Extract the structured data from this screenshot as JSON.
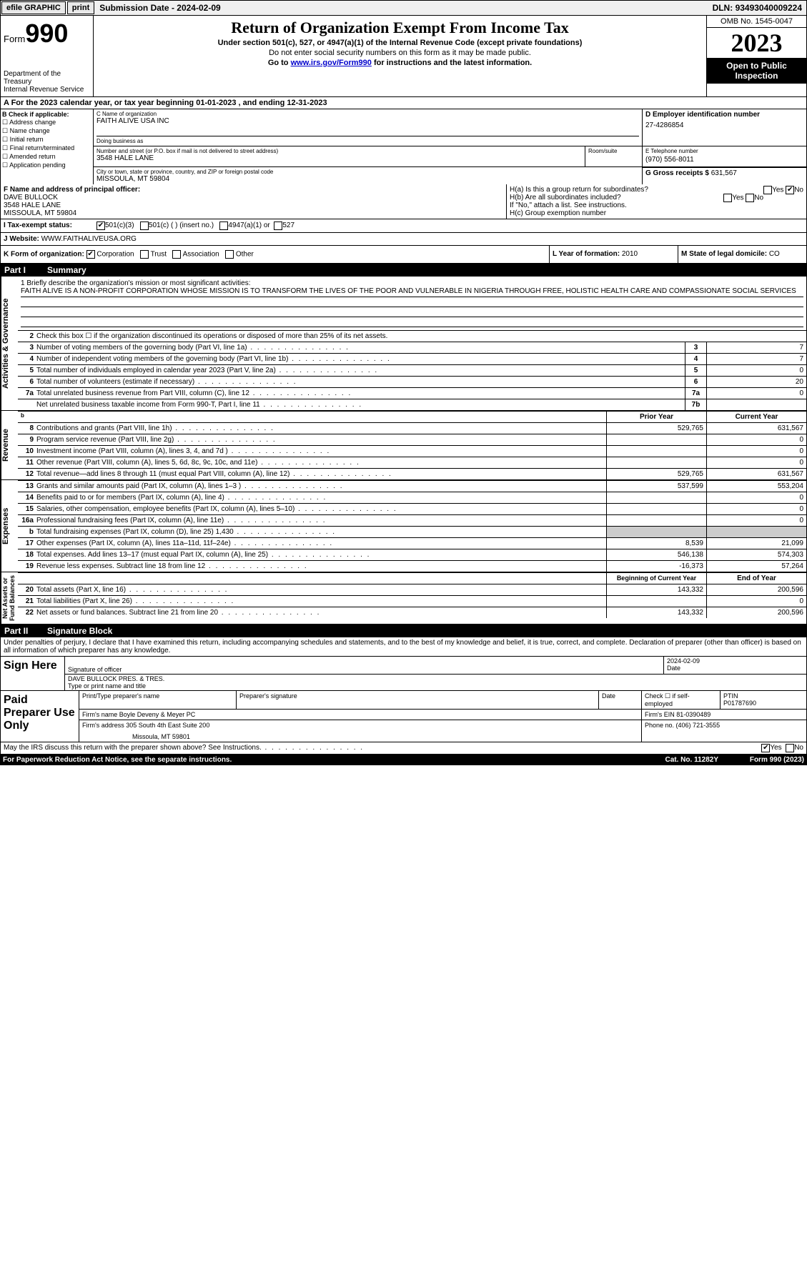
{
  "topbar": {
    "efile": "efile GRAPHIC",
    "print": "print",
    "submission_label": "Submission Date - ",
    "submission_date": "2024-02-09",
    "dln_label": "DLN: ",
    "dln": "93493040009224"
  },
  "header": {
    "form_label": "Form",
    "form_number": "990",
    "dept": "Department of the Treasury\nInternal Revenue Service",
    "title": "Return of Organization Exempt From Income Tax",
    "sub1": "Under section 501(c), 527, or 4947(a)(1) of the Internal Revenue Code (except private foundations)",
    "sub2": "Do not enter social security numbers on this form as it may be made public.",
    "sub3_pre": "Go to ",
    "sub3_link": "www.irs.gov/Form990",
    "sub3_post": " for instructions and the latest information.",
    "omb": "OMB No. 1545-0047",
    "year": "2023",
    "inspection": "Open to Public Inspection"
  },
  "section_a": {
    "text_pre": "A   For the 2023 calendar year, or tax year beginning ",
    "begin": "01-01-2023",
    "mid": "   , and ending ",
    "end": "12-31-2023"
  },
  "col_b": {
    "label": "B Check if applicable:",
    "opts": [
      "Address change",
      "Name change",
      "Initial return",
      "Final return/terminated",
      "Amended return",
      "Application pending"
    ]
  },
  "col_c": {
    "name_label": "C Name of organization",
    "name": "FAITH ALIVE USA INC",
    "dba_label": "Doing business as",
    "dba": "",
    "street_label": "Number and street (or P.O. box if mail is not delivered to street address)",
    "street": "3548 HALE LANE",
    "room_label": "Room/suite",
    "room": "",
    "city_label": "City or town, state or province, country, and ZIP or foreign postal code",
    "city": "MISSOULA, MT  59804"
  },
  "col_d": {
    "ein_label": "D Employer identification number",
    "ein": "27-4286854",
    "phone_label": "E Telephone number",
    "phone": "(970) 556-8011",
    "gross_label": "G Gross receipts $ ",
    "gross": "631,567"
  },
  "officer": {
    "label": "F  Name and address of principal officer:",
    "name": "DAVE BULLOCK",
    "street": "3548 HALE LANE",
    "city": "MISSOULA, MT  59804"
  },
  "h": {
    "a_label": "H(a)  Is this a group return for subordinates?",
    "a_yes": "Yes",
    "a_no": "No",
    "b_label": "H(b)  Are all subordinates included?",
    "b_yes": "Yes",
    "b_no": "No",
    "b_note": "If \"No,\" attach a list. See instructions.",
    "c_label": "H(c)  Group exemption number "
  },
  "row_i": {
    "label": "I    Tax-exempt status:",
    "o1": "501(c)(3)",
    "o2": "501(c) (  ) (insert no.)",
    "o3": "4947(a)(1) or",
    "o4": "527"
  },
  "row_j": {
    "label": "J    Website: ",
    "value": "WWW.FAITHALIVEUSA.ORG"
  },
  "row_k": {
    "label": "K Form of organization:",
    "o1": "Corporation",
    "o2": "Trust",
    "o3": "Association",
    "o4": "Other",
    "l_label": "L Year of formation: ",
    "l_val": "2010",
    "m_label": "M State of legal domicile: ",
    "m_val": "CO"
  },
  "part1": {
    "num": "Part I",
    "title": "Summary"
  },
  "mission": {
    "label": "1   Briefly describe the organization's mission or most significant activities:",
    "text": "FAITH ALIVE IS A NON-PROFIT CORPORATION WHOSE MISSION IS TO TRANSFORM THE LIVES OF THE POOR AND VULNERABLE IN NIGERIA THROUGH FREE, HOLISTIC HEALTH CARE AND COMPASSIONATE SOCIAL SERVICES"
  },
  "governance_lines": [
    {
      "num": "2",
      "text": "Check this box ☐  if the organization discontinued its operations or disposed of more than 25% of its net assets.",
      "box": "",
      "val": ""
    },
    {
      "num": "3",
      "text": "Number of voting members of the governing body (Part VI, line 1a)",
      "box": "3",
      "val": "7"
    },
    {
      "num": "4",
      "text": "Number of independent voting members of the governing body (Part VI, line 1b)",
      "box": "4",
      "val": "7"
    },
    {
      "num": "5",
      "text": "Total number of individuals employed in calendar year 2023 (Part V, line 2a)",
      "box": "5",
      "val": "0"
    },
    {
      "num": "6",
      "text": "Total number of volunteers (estimate if necessary)",
      "box": "6",
      "val": "20"
    },
    {
      "num": "7a",
      "text": "Total unrelated business revenue from Part VIII, column (C), line 12",
      "box": "7a",
      "val": "0"
    },
    {
      "num": "",
      "text": "Net unrelated business taxable income from Form 990-T, Part I, line 11",
      "box": "7b",
      "val": ""
    }
  ],
  "col_headers": {
    "prior": "Prior Year",
    "current": "Current Year"
  },
  "revenue_label": "Revenue",
  "revenue_lines": [
    {
      "num": "8",
      "text": "Contributions and grants (Part VIII, line 1h)",
      "c1": "529,765",
      "c2": "631,567"
    },
    {
      "num": "9",
      "text": "Program service revenue (Part VIII, line 2g)",
      "c1": "",
      "c2": "0"
    },
    {
      "num": "10",
      "text": "Investment income (Part VIII, column (A), lines 3, 4, and 7d )",
      "c1": "",
      "c2": "0"
    },
    {
      "num": "11",
      "text": "Other revenue (Part VIII, column (A), lines 5, 6d, 8c, 9c, 10c, and 11e)",
      "c1": "",
      "c2": "0"
    },
    {
      "num": "12",
      "text": "Total revenue—add lines 8 through 11 (must equal Part VIII, column (A), line 12)",
      "c1": "529,765",
      "c2": "631,567"
    }
  ],
  "expenses_label": "Expenses",
  "expenses_lines": [
    {
      "num": "13",
      "text": "Grants and similar amounts paid (Part IX, column (A), lines 1–3 )",
      "c1": "537,599",
      "c2": "553,204"
    },
    {
      "num": "14",
      "text": "Benefits paid to or for members (Part IX, column (A), line 4)",
      "c1": "",
      "c2": "0"
    },
    {
      "num": "15",
      "text": "Salaries, other compensation, employee benefits (Part IX, column (A), lines 5–10)",
      "c1": "",
      "c2": "0"
    },
    {
      "num": "16a",
      "text": "Professional fundraising fees (Part IX, column (A), line 11e)",
      "c1": "",
      "c2": "0"
    },
    {
      "num": "b",
      "text": "Total fundraising expenses (Part IX, column (D), line 25) 1,430",
      "c1": "GREY",
      "c2": "GREY"
    },
    {
      "num": "17",
      "text": "Other expenses (Part IX, column (A), lines 11a–11d, 11f–24e)",
      "c1": "8,539",
      "c2": "21,099"
    },
    {
      "num": "18",
      "text": "Total expenses. Add lines 13–17 (must equal Part IX, column (A), line 25)",
      "c1": "546,138",
      "c2": "574,303"
    },
    {
      "num": "19",
      "text": "Revenue less expenses. Subtract line 18 from line 12",
      "c1": "-16,373",
      "c2": "57,264"
    }
  ],
  "netassets_label": "Net Assets or\nFund Balances",
  "netassets_header": {
    "c1": "Beginning of Current Year",
    "c2": "End of Year"
  },
  "netassets_lines": [
    {
      "num": "20",
      "text": "Total assets (Part X, line 16)",
      "c1": "143,332",
      "c2": "200,596"
    },
    {
      "num": "21",
      "text": "Total liabilities (Part X, line 26)",
      "c1": "",
      "c2": "0"
    },
    {
      "num": "22",
      "text": "Net assets or fund balances. Subtract line 21 from line 20",
      "c1": "143,332",
      "c2": "200,596"
    }
  ],
  "part2": {
    "num": "Part II",
    "title": "Signature Block"
  },
  "perjury": "Under penalties of perjury, I declare that I have examined this return, including accompanying schedules and statements, and to the best of my knowledge and belief, it is true, correct, and complete. Declaration of preparer (other than officer) is based on all information of which preparer has any knowledge.",
  "sign": {
    "label": "Sign Here",
    "sig_label": "Signature of officer",
    "date_label": "Date",
    "date": "2024-02-09",
    "name": "DAVE BULLOCK PRES. & TRES.",
    "name_label": "Type or print name and title"
  },
  "preparer": {
    "label": "Paid Preparer Use Only",
    "name_label": "Print/Type preparer's name",
    "name": "",
    "sig_label": "Preparer's signature",
    "date_label": "Date",
    "self_label": "Check ☐ if self-employed",
    "ptin_label": "PTIN",
    "ptin": "P01787690",
    "firm_name_label": "Firm's name    ",
    "firm_name": "Boyle Deveny & Meyer PC",
    "firm_ein_label": "Firm's EIN  ",
    "firm_ein": "81-0390489",
    "firm_addr_label": "Firm's address ",
    "firm_addr": "305 South 4th East Suite 200",
    "firm_addr2": "Missoula, MT  59801",
    "phone_label": "Phone no. ",
    "phone": "(406) 721-3555"
  },
  "discuss": {
    "text": "May the IRS discuss this return with the preparer shown above? See Instructions.",
    "yes": "Yes",
    "no": "No"
  },
  "footer": {
    "left": "For Paperwork Reduction Act Notice, see the separate instructions.",
    "center": "Cat. No. 11282Y",
    "right": "Form 990 (2023)"
  },
  "vlabels": {
    "gov": "Activities & Governance"
  }
}
